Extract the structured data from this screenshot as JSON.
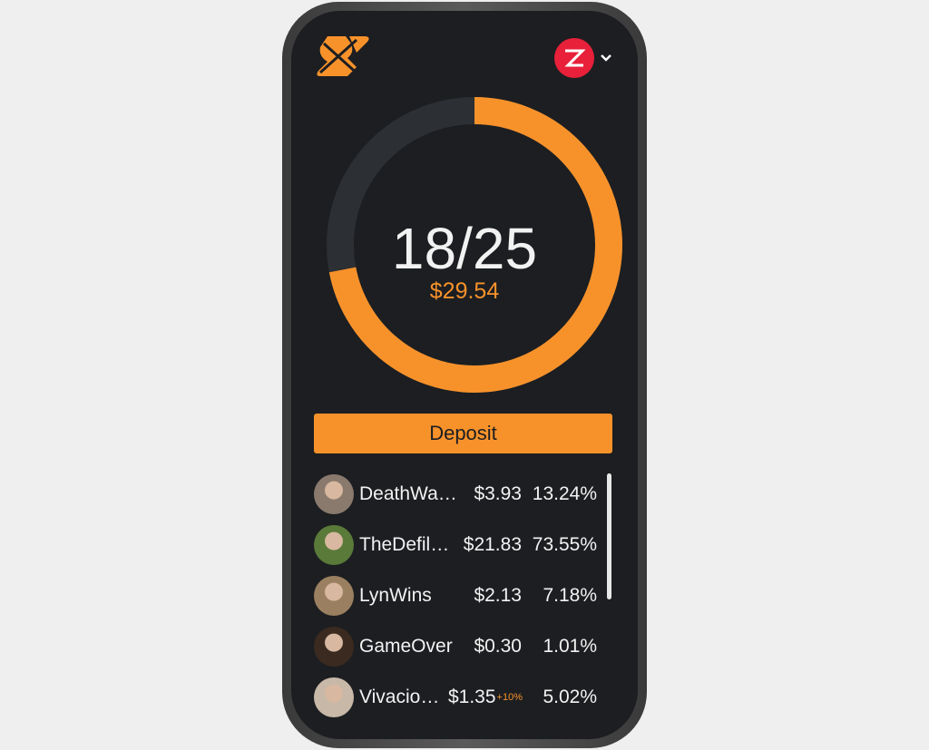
{
  "header": {
    "logo": "SS logo",
    "user_avatar_letter": "Z",
    "dropdown_icon": "chevron-down-icon"
  },
  "progress": {
    "current": 18,
    "total": 25,
    "label": "18/25",
    "pot": "$29.54",
    "fraction": 0.72
  },
  "deposit_label": "Deposit",
  "colors": {
    "accent": "#f7922b",
    "background": "#1c1e21",
    "track": "#2c2f33",
    "user_badge": "#e8203a"
  },
  "players": [
    {
      "name": "DeathWa…",
      "amount": "$3.93",
      "bonus": "",
      "percent": "13.24%",
      "avatar_color": "#8a7a6e"
    },
    {
      "name": "TheDefil…",
      "amount": "$21.83",
      "bonus": "",
      "percent": "73.55%",
      "avatar_color": "#5a7a3a"
    },
    {
      "name": "LynWins",
      "amount": "$2.13",
      "bonus": "",
      "percent": "7.18%",
      "avatar_color": "#9a8060"
    },
    {
      "name": "GameOver",
      "amount": "$0.30",
      "bonus": "",
      "percent": "1.01%",
      "avatar_color": "#3a2a20"
    },
    {
      "name": "Vivacio…",
      "amount": "$1.35",
      "bonus": "+10%",
      "percent": "5.02%",
      "avatar_color": "#c8b8a8"
    }
  ]
}
